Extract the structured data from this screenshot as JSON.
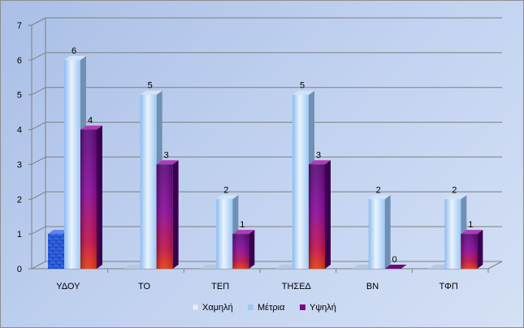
{
  "chart_data": {
    "type": "bar",
    "title": "",
    "xlabel": "",
    "ylabel": "",
    "ylim": [
      0,
      7
    ],
    "yticks": [
      0,
      1,
      2,
      3,
      4,
      5,
      6,
      7
    ],
    "grid": true,
    "legend_position": "bottom",
    "categories": [
      "ΥΔΟΥ",
      "ΤΟ",
      "ΤΕΠ",
      "ΤΗΣΕΔ",
      "ΒΝ",
      "ΤΦΠ"
    ],
    "series": [
      {
        "name": "Χαμηλή",
        "values": [
          1,
          0,
          0,
          0,
          0,
          0
        ],
        "color": "#1c43c9",
        "show_labels": false
      },
      {
        "name": "Μέτρια",
        "values": [
          6,
          5,
          2,
          5,
          2,
          2
        ],
        "color": "#9cc8f5",
        "show_labels": true
      },
      {
        "name": "Υψηλή",
        "values": [
          4,
          3,
          1,
          3,
          0,
          1
        ],
        "color": "#7a0a86",
        "show_labels": true
      }
    ]
  }
}
